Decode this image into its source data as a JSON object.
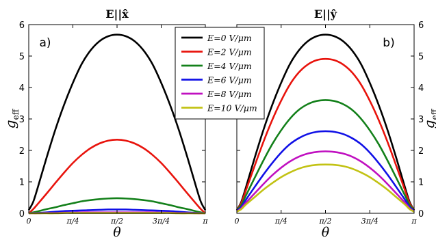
{
  "chart_data": [
    {
      "type": "line",
      "title": "E||x̂",
      "panel_label": "a)",
      "xlabel": "θ",
      "ylabel": "g_eff",
      "ylabel_side": "left",
      "xlim": [
        0,
        3.1416
      ],
      "ylim": [
        0,
        6
      ],
      "yticks": [
        "0",
        "1",
        "2",
        "3",
        "4",
        "5",
        "6"
      ],
      "xticks": [
        "0",
        "π/4",
        "π/2",
        "3π/4",
        "π"
      ],
      "xtick_values": [
        0,
        0.7854,
        1.5708,
        2.3562,
        3.1416
      ],
      "x": [
        0.0,
        0.0785,
        0.1571,
        0.3142,
        0.4712,
        0.6283,
        0.7854,
        0.9425,
        1.0996,
        1.2566,
        1.4137,
        1.5708,
        1.7279,
        1.885,
        2.042,
        2.1991,
        2.3562,
        2.5133,
        2.6704,
        2.8274,
        2.9845,
        3.0631,
        3.1416
      ],
      "series": [
        {
          "name": "E=0 V/μm",
          "color": "#000000",
          "values": [
            0.1,
            0.36,
            0.8,
            1.75,
            2.65,
            3.45,
            4.15,
            4.75,
            5.18,
            5.47,
            5.63,
            5.68,
            5.63,
            5.47,
            5.18,
            4.75,
            4.15,
            3.45,
            2.65,
            1.75,
            0.8,
            0.36,
            0.1
          ]
        },
        {
          "name": "E=2 V/μm",
          "color": "#e8130c",
          "values": [
            0.0,
            0.13,
            0.29,
            0.62,
            0.96,
            1.29,
            1.6,
            1.86,
            2.07,
            2.22,
            2.31,
            2.34,
            2.31,
            2.22,
            2.07,
            1.86,
            1.6,
            1.29,
            0.96,
            0.62,
            0.29,
            0.13,
            0.0
          ]
        },
        {
          "name": "E=4 V/μm",
          "color": "#13801a",
          "values": [
            0.0,
            0.03,
            0.06,
            0.13,
            0.19,
            0.26,
            0.32,
            0.38,
            0.42,
            0.45,
            0.47,
            0.48,
            0.47,
            0.45,
            0.42,
            0.38,
            0.32,
            0.26,
            0.19,
            0.13,
            0.06,
            0.03,
            0.0
          ]
        },
        {
          "name": "E=6 V/μm",
          "color": "#1010e6",
          "values": [
            0.0,
            0.01,
            0.01,
            0.03,
            0.05,
            0.07,
            0.08,
            0.09,
            0.1,
            0.11,
            0.12,
            0.12,
            0.12,
            0.11,
            0.1,
            0.09,
            0.08,
            0.07,
            0.05,
            0.03,
            0.01,
            0.01,
            0.0
          ]
        },
        {
          "name": "E=8 V/μm",
          "color": "#c010c0",
          "values": [
            0.0,
            0.0,
            0.0,
            0.01,
            0.01,
            0.02,
            0.02,
            0.03,
            0.03,
            0.03,
            0.03,
            0.03,
            0.03,
            0.03,
            0.03,
            0.03,
            0.02,
            0.02,
            0.01,
            0.01,
            0.0,
            0.0,
            0.0
          ]
        },
        {
          "name": "E=10 V/μm",
          "color": "#c2c214",
          "values": [
            0.0,
            0.0,
            0.0,
            0.0,
            0.0,
            0.01,
            0.01,
            0.01,
            0.01,
            0.01,
            0.01,
            0.01,
            0.01,
            0.01,
            0.01,
            0.01,
            0.01,
            0.01,
            0.0,
            0.0,
            0.0,
            0.0,
            0.0
          ]
        }
      ]
    },
    {
      "type": "line",
      "title": "E||ŷ",
      "panel_label": "b)",
      "xlabel": "θ",
      "ylabel": "g_eff",
      "ylabel_side": "right",
      "xlim": [
        0,
        3.1416
      ],
      "ylim": [
        0,
        6
      ],
      "yticks": [
        "0",
        "1",
        "2",
        "3",
        "4",
        "5",
        "6"
      ],
      "xticks": [
        "0",
        "π/4",
        "π/2",
        "3π/4",
        "π"
      ],
      "xtick_values": [
        0,
        0.7854,
        1.5708,
        2.3562,
        3.1416
      ],
      "x": [
        0.0,
        0.0785,
        0.1571,
        0.3142,
        0.4712,
        0.6283,
        0.7854,
        0.9425,
        1.0996,
        1.2566,
        1.4137,
        1.5708,
        1.7279,
        1.885,
        2.042,
        2.1991,
        2.3562,
        2.5133,
        2.6704,
        2.8274,
        2.9845,
        3.0631,
        3.1416
      ],
      "series": [
        {
          "name": "E=0 V/μm",
          "color": "#000000",
          "values": [
            0.1,
            0.36,
            0.8,
            1.75,
            2.65,
            3.45,
            4.15,
            4.75,
            5.18,
            5.47,
            5.63,
            5.68,
            5.63,
            5.47,
            5.18,
            4.75,
            4.15,
            3.45,
            2.65,
            1.75,
            0.8,
            0.36,
            0.1
          ]
        },
        {
          "name": "E=2 V/μm",
          "color": "#e8130c",
          "values": [
            0.1,
            0.32,
            0.71,
            1.5,
            2.27,
            2.97,
            3.58,
            4.1,
            4.48,
            4.73,
            4.87,
            4.91,
            4.87,
            4.73,
            4.48,
            4.1,
            3.58,
            2.97,
            2.27,
            1.5,
            0.71,
            0.32,
            0.1
          ]
        },
        {
          "name": "E=4 V/μm",
          "color": "#13801a",
          "values": [
            0.1,
            0.26,
            0.55,
            1.12,
            1.68,
            2.2,
            2.64,
            3.01,
            3.29,
            3.47,
            3.57,
            3.6,
            3.57,
            3.47,
            3.29,
            3.01,
            2.64,
            2.2,
            1.68,
            1.12,
            0.55,
            0.26,
            0.1
          ]
        },
        {
          "name": "E=6 V/μm",
          "color": "#1010e6",
          "values": [
            0.08,
            0.2,
            0.42,
            0.83,
            1.23,
            1.6,
            1.93,
            2.2,
            2.39,
            2.52,
            2.59,
            2.61,
            2.59,
            2.52,
            2.39,
            2.2,
            1.93,
            1.6,
            1.23,
            0.83,
            0.42,
            0.2,
            0.08
          ]
        },
        {
          "name": "E=8 V/μm",
          "color": "#c010c0",
          "values": [
            0.06,
            0.16,
            0.33,
            0.63,
            0.93,
            1.21,
            1.45,
            1.65,
            1.8,
            1.9,
            1.95,
            1.97,
            1.95,
            1.9,
            1.8,
            1.65,
            1.45,
            1.21,
            0.93,
            0.63,
            0.33,
            0.16,
            0.06
          ]
        },
        {
          "name": "E=10 V/μm",
          "color": "#c2c214",
          "values": [
            0.05,
            0.13,
            0.27,
            0.51,
            0.75,
            0.96,
            1.15,
            1.3,
            1.42,
            1.5,
            1.54,
            1.55,
            1.54,
            1.5,
            1.42,
            1.3,
            1.15,
            0.96,
            0.75,
            0.51,
            0.27,
            0.13,
            0.05
          ]
        }
      ]
    }
  ],
  "legend": {
    "placement": "top-center",
    "entries": [
      {
        "label": "E=0 V/μm",
        "color": "#000000"
      },
      {
        "label": "E=2 V/μm",
        "color": "#e8130c"
      },
      {
        "label": "E=4 V/μm",
        "color": "#13801a"
      },
      {
        "label": "E=6 V/μm",
        "color": "#1010e6"
      },
      {
        "label": "E=8 V/μm",
        "color": "#c010c0"
      },
      {
        "label": "E=10 V/μm",
        "color": "#c2c214"
      }
    ]
  }
}
